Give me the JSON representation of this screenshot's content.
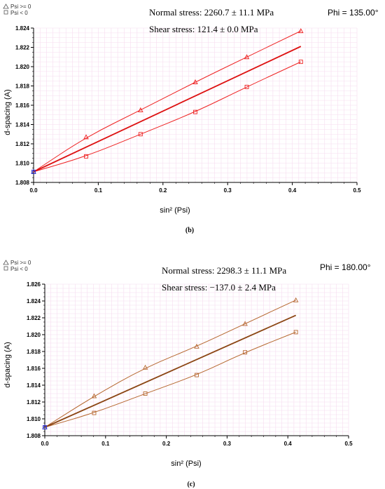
{
  "chart_data": [
    {
      "type": "scatter",
      "panel_label": "(b)",
      "phi_label": "Phi = 135.00°",
      "normal_stress_label": "Normal stress: 2260.7 ± 11.1 MPa",
      "shear_stress_label": "Shear stress: 121.4 ± 0.0 MPa",
      "xlabel": "sin² (Psi)",
      "ylabel": "d-spacing (A)",
      "xlim": [
        0,
        0.5
      ],
      "ylim": [
        1.808,
        1.824
      ],
      "x_ticks": [
        "0.0",
        "0.1",
        "0.2",
        "0.3",
        "0.4",
        "0.5"
      ],
      "y_ticks": [
        "1.808",
        "1.810",
        "1.812",
        "1.814",
        "1.816",
        "1.818",
        "1.820",
        "1.822",
        "1.824"
      ],
      "legend": [
        "Psi >= 0",
        "Psi <  0"
      ],
      "colors": {
        "data": "#ee2222",
        "fit": "#dd1111",
        "origin": "#3333cc"
      },
      "series": [
        {
          "name": "Psi >= 0",
          "marker": "triangle",
          "x": [
            0.0,
            0.0812,
            0.1654,
            0.25,
            0.3296,
            0.4132
          ],
          "y": [
            1.8091,
            1.8127,
            1.8155,
            1.8184,
            1.821,
            1.8237
          ]
        },
        {
          "name": "Psi <  0",
          "marker": "square",
          "x": [
            0.0,
            0.0812,
            0.1654,
            0.25,
            0.3296,
            0.4132
          ],
          "y": [
            1.8091,
            1.8107,
            1.813,
            1.8153,
            1.8179,
            1.8205
          ]
        }
      ],
      "fit_line": {
        "x": [
          0.0,
          0.4132
        ],
        "y": [
          1.8091,
          1.8221
        ]
      }
    },
    {
      "type": "scatter",
      "panel_label": "(c)",
      "phi_label": "Phi = 180.00°",
      "normal_stress_label": "Normal stress: 2298.3 ± 11.1 MPa",
      "shear_stress_label": "Shear stress: −137.0 ± 2.4 MPa",
      "xlabel": "sin² (Psi)",
      "ylabel": "d-spacing (A)",
      "xlim": [
        0,
        0.5
      ],
      "ylim": [
        1.808,
        1.826
      ],
      "x_ticks": [
        "0.0",
        "0.1",
        "0.2",
        "0.3",
        "0.4",
        "0.5"
      ],
      "y_ticks": [
        "1.808",
        "1.810",
        "1.812",
        "1.814",
        "1.816",
        "1.818",
        "1.820",
        "1.822",
        "1.824",
        "1.826"
      ],
      "legend": [
        "Psi >= 0",
        "Psi <  0"
      ],
      "colors": {
        "data": "#b5662e",
        "fit": "#8b4513",
        "origin": "#3333cc"
      },
      "series": [
        {
          "name": "Psi >= 0",
          "marker": "triangle",
          "x": [
            0.0,
            0.0812,
            0.1654,
            0.25,
            0.3296,
            0.4132
          ],
          "y": [
            1.809,
            1.8127,
            1.8161,
            1.8186,
            1.8213,
            1.8241
          ]
        },
        {
          "name": "Psi <  0",
          "marker": "square",
          "x": [
            0.0,
            0.0812,
            0.1654,
            0.25,
            0.3296,
            0.4132
          ],
          "y": [
            1.809,
            1.8107,
            1.813,
            1.8152,
            1.8179,
            1.8203
          ]
        }
      ],
      "fit_line": {
        "x": [
          0.0,
          0.4132
        ],
        "y": [
          1.809,
          1.8223
        ]
      }
    }
  ]
}
